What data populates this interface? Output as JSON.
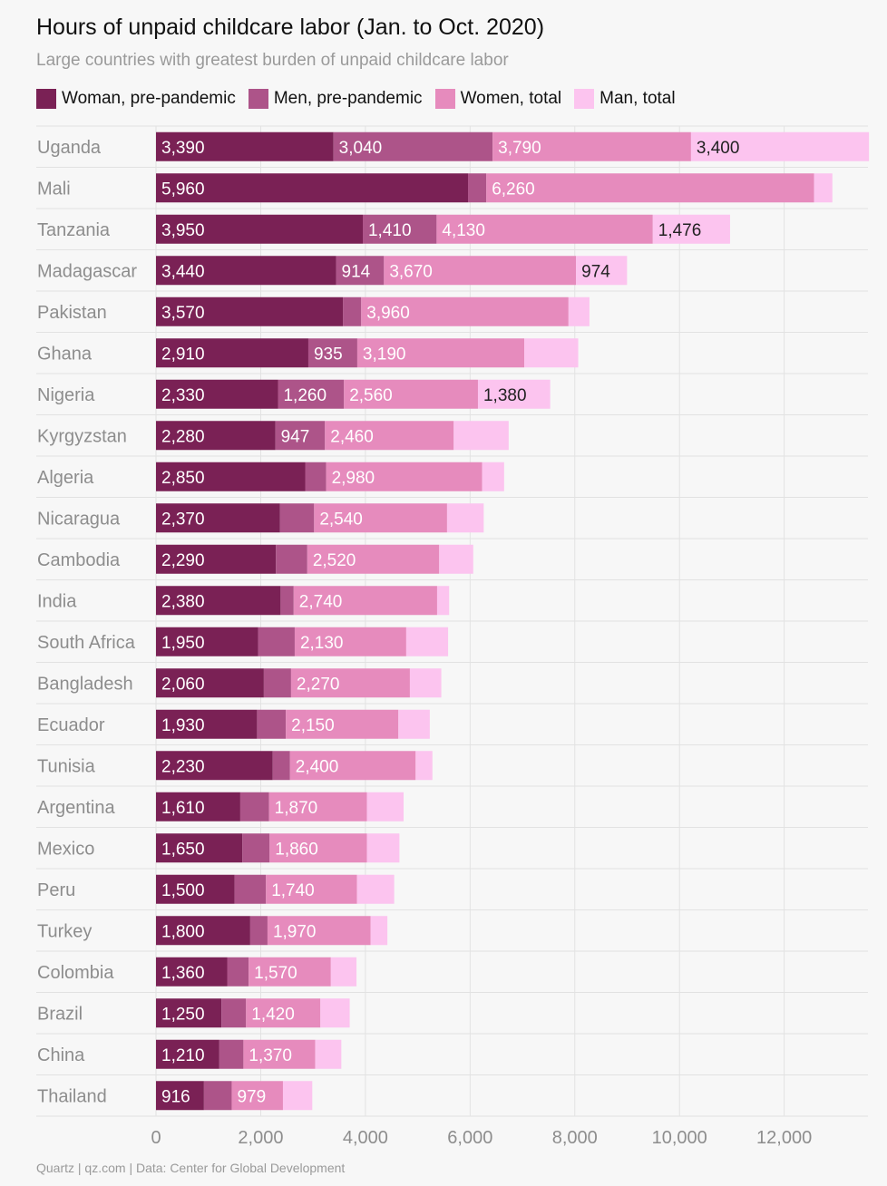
{
  "chart_data": {
    "type": "bar",
    "orientation": "horizontal",
    "stacked": true,
    "title": "Hours of unpaid childcare labor (Jan. to Oct. 2020)",
    "subtitle": "Large countries with greatest burden of unpaid childcare labor",
    "source": "Quartz | qz.com | Data: Center for Global Development",
    "legend_position": "top-left",
    "grid": true,
    "xlim": [
      0,
      13600
    ],
    "xticks": [
      0,
      2000,
      4000,
      6000,
      8000,
      10000,
      12000
    ],
    "xtick_labels": [
      "0",
      "2,000",
      "4,000",
      "6,000",
      "8,000",
      "10,000",
      "12,000"
    ],
    "categories": [
      "Uganda",
      "Mali",
      "Tanzania",
      "Madagascar",
      "Pakistan",
      "Ghana",
      "Nigeria",
      "Kyrgyzstan",
      "Algeria",
      "Nicaragua",
      "Cambodia",
      "India",
      "South Africa",
      "Bangladesh",
      "Ecuador",
      "Tunisia",
      "Argentina",
      "Mexico",
      "Peru",
      "Turkey",
      "Colombia",
      "Brazil",
      "China",
      "Thailand"
    ],
    "series": [
      {
        "name": "Woman, pre-pandemic",
        "color": "#7a2155",
        "label_color": "#ffffff",
        "values": [
          3390,
          5960,
          3950,
          3440,
          3570,
          2910,
          2330,
          2280,
          2850,
          2370,
          2290,
          2380,
          1950,
          2060,
          1930,
          2230,
          1610,
          1650,
          1500,
          1800,
          1360,
          1250,
          1210,
          916
        ],
        "labels": [
          "3,390",
          "5,960",
          "3,950",
          "3,440",
          "3,570",
          "2,910",
          "2,330",
          "2,280",
          "2,850",
          "2,370",
          "2,290",
          "2,380",
          "1,950",
          "2,060",
          "1,930",
          "2,230",
          "1,610",
          "1,650",
          "1,500",
          "1,800",
          "1,360",
          "1,250",
          "1,210",
          "916"
        ]
      },
      {
        "name": "Men, pre-pandemic",
        "color": "#ad5489",
        "label_color": "#ffffff",
        "values": [
          3040,
          350,
          1410,
          914,
          350,
          935,
          1260,
          947,
          400,
          650,
          600,
          250,
          700,
          520,
          550,
          330,
          550,
          520,
          600,
          330,
          410,
          470,
          460,
          530
        ],
        "labels": [
          "3,040",
          "",
          "1,410",
          "914",
          "",
          "935",
          "1,260",
          "947",
          "",
          "",
          "",
          "",
          "",
          "",
          "",
          "",
          "",
          "",
          "",
          "",
          "",
          "",
          "",
          ""
        ]
      },
      {
        "name": "Women, total",
        "color": "#e68bbd",
        "label_color": "#ffffff",
        "values": [
          3790,
          6260,
          4130,
          3670,
          3960,
          3190,
          2560,
          2460,
          2980,
          2540,
          2520,
          2740,
          2130,
          2270,
          2150,
          2400,
          1870,
          1860,
          1740,
          1970,
          1570,
          1420,
          1370,
          979
        ],
        "labels": [
          "3,790",
          "6,260",
          "4,130",
          "3,670",
          "3,960",
          "3,190",
          "2,560",
          "2,460",
          "2,980",
          "2,540",
          "2,520",
          "2,740",
          "2,130",
          "2,270",
          "2,150",
          "2,400",
          "1,870",
          "1,860",
          "1,740",
          "1,970",
          "1,570",
          "1,420",
          "1,370",
          "979"
        ]
      },
      {
        "name": "Man, total",
        "color": "#fcc4ef",
        "label_color": "#222222",
        "values": [
          3400,
          350,
          1476,
          974,
          400,
          1030,
          1380,
          1050,
          420,
          700,
          650,
          230,
          800,
          600,
          600,
          320,
          700,
          620,
          710,
          320,
          490,
          560,
          500,
          560
        ],
        "labels": [
          "3,400",
          "",
          "1,476",
          "974",
          "",
          "",
          "1,380",
          "",
          "",
          "",
          "",
          "",
          "",
          "",
          "",
          "",
          "",
          "",
          "",
          "",
          "",
          "",
          "",
          ""
        ]
      }
    ]
  }
}
